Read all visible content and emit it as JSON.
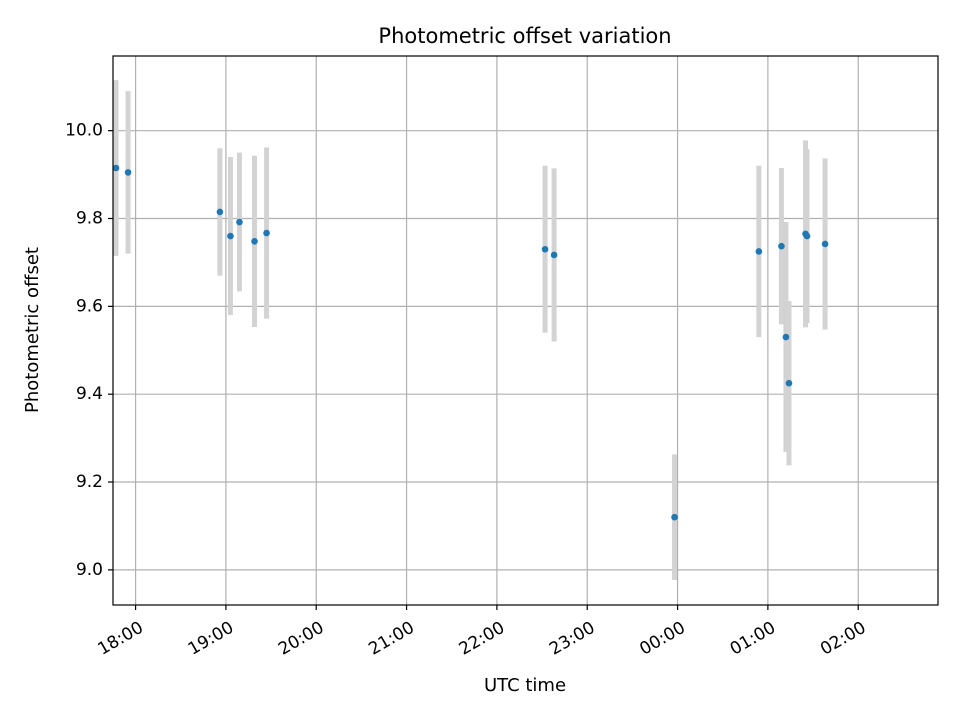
{
  "chart_data": {
    "type": "scatter",
    "title": "Photometric offset variation",
    "xlabel": "UTC time",
    "ylabel": "Photometric offset",
    "xlim": [
      "17:45",
      "02:53"
    ],
    "ylim": [
      8.92,
      10.17
    ],
    "grid": true,
    "x_tick_labels": [
      "18:00",
      "19:00",
      "20:00",
      "21:00",
      "22:00",
      "23:00",
      "00:00",
      "01:00",
      "02:00"
    ],
    "y_tick_labels": [
      "9.0",
      "9.2",
      "9.4",
      "9.6",
      "9.8",
      "10.0"
    ],
    "y_ticks": [
      9.0,
      9.2,
      9.4,
      9.6,
      9.8,
      10.0
    ],
    "colors": {
      "points": "#1f77b4",
      "error_bars": "#d3d3d3",
      "grid": "#b0b0b0"
    },
    "series": [
      {
        "points": [
          {
            "x": "17:47",
            "y": 9.915,
            "yerr": 0.2
          },
          {
            "x": "17:55",
            "y": 9.905,
            "yerr": 0.185
          },
          {
            "x": "18:56",
            "y": 9.815,
            "yerr": 0.145
          },
          {
            "x": "19:03",
            "y": 9.76,
            "yerr": 0.18
          },
          {
            "x": "19:09",
            "y": 9.792,
            "yerr": 0.158
          },
          {
            "x": "19:19",
            "y": 9.748,
            "yerr": 0.195
          },
          {
            "x": "19:27",
            "y": 9.767,
            "yerr": 0.195
          },
          {
            "x": "22:32",
            "y": 9.73,
            "yerr": 0.19
          },
          {
            "x": "22:38",
            "y": 9.717,
            "yerr": 0.197
          },
          {
            "x": "23:58",
            "y": 9.12,
            "yerr": 0.143
          },
          {
            "x": "00:54",
            "y": 9.725,
            "yerr": 0.195
          },
          {
            "x": "01:09",
            "y": 9.737,
            "yerr": 0.178
          },
          {
            "x": "01:12",
            "y": 9.53,
            "yerr": 0.262
          },
          {
            "x": "01:14",
            "y": 9.425,
            "yerr": 0.187
          },
          {
            "x": "01:25",
            "y": 9.765,
            "yerr": 0.213
          },
          {
            "x": "01:26",
            "y": 9.76,
            "yerr": 0.198
          },
          {
            "x": "01:38",
            "y": 9.742,
            "yerr": 0.195
          }
        ]
      }
    ]
  }
}
